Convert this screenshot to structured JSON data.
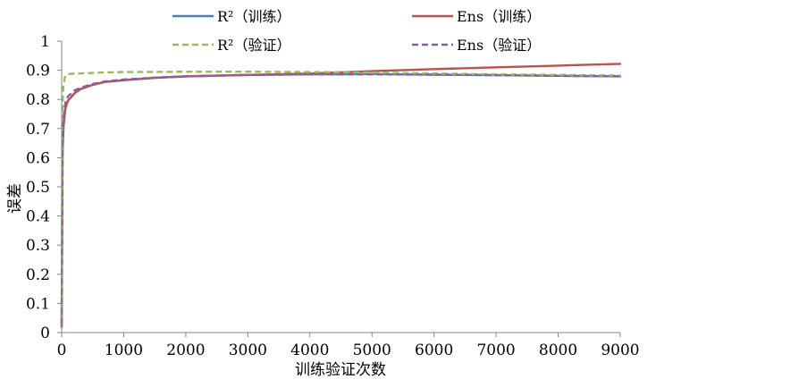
{
  "chart_data": {
    "type": "line",
    "title": "",
    "xlabel": "训练验证次数",
    "ylabel": "误差",
    "xlim": [
      0,
      9000
    ],
    "ylim": [
      0,
      1
    ],
    "x_ticks": [
      "0",
      "1000",
      "2000",
      "3000",
      "4000",
      "5000",
      "6000",
      "7000",
      "8000",
      "9000"
    ],
    "y_ticks": [
      "0",
      "0.1",
      "0.2",
      "0.3",
      "0.4",
      "0.5",
      "0.6",
      "0.7",
      "0.8",
      "0.9",
      "1"
    ],
    "grid": false,
    "legend_position": "top",
    "series": [
      {
        "name": "R²（训练）",
        "color": "#4a7ebb",
        "dash": "solid",
        "x": [
          0,
          15,
          30,
          60,
          100,
          200,
          300,
          500,
          700,
          1000,
          1500,
          2000,
          3000,
          4000,
          5000,
          6000,
          7000,
          8000,
          9000
        ],
        "y": [
          0.02,
          0.62,
          0.71,
          0.77,
          0.795,
          0.82,
          0.835,
          0.85,
          0.86,
          0.866,
          0.874,
          0.879,
          0.884,
          0.886,
          0.887,
          0.885,
          0.883,
          0.881,
          0.879
        ]
      },
      {
        "name": "Ens（训练）",
        "color": "#c0504d",
        "dash": "solid",
        "x": [
          0,
          15,
          30,
          60,
          100,
          200,
          300,
          500,
          700,
          1000,
          1500,
          2000,
          3000,
          4000,
          5000,
          6000,
          7000,
          8000,
          9000
        ],
        "y": [
          0.02,
          0.62,
          0.71,
          0.77,
          0.795,
          0.82,
          0.835,
          0.85,
          0.86,
          0.866,
          0.874,
          0.879,
          0.884,
          0.889,
          0.897,
          0.904,
          0.91,
          0.916,
          0.922
        ]
      },
      {
        "name": "R²（验证）",
        "color": "#9bbb59",
        "dash": "dashed",
        "x": [
          0,
          10,
          25,
          50,
          80,
          150,
          300,
          600,
          1000,
          2000,
          3000,
          4000,
          5000,
          6000,
          7000,
          8000,
          9000
        ],
        "y": [
          0.05,
          0.75,
          0.84,
          0.875,
          0.886,
          0.888,
          0.889,
          0.892,
          0.894,
          0.895,
          0.895,
          0.894,
          0.892,
          0.889,
          0.886,
          0.884,
          0.882
        ]
      },
      {
        "name": "Ens（验证）",
        "color": "#8064a2",
        "dash": "dashed",
        "x": [
          0,
          15,
          30,
          60,
          100,
          200,
          300,
          500,
          700,
          1000,
          1500,
          2000,
          3000,
          4000,
          5000,
          6000,
          7000,
          8000,
          9000
        ],
        "y": [
          0.03,
          0.66,
          0.74,
          0.79,
          0.81,
          0.83,
          0.84,
          0.853,
          0.862,
          0.868,
          0.875,
          0.879,
          0.884,
          0.886,
          0.886,
          0.885,
          0.883,
          0.881,
          0.879
        ]
      }
    ]
  }
}
